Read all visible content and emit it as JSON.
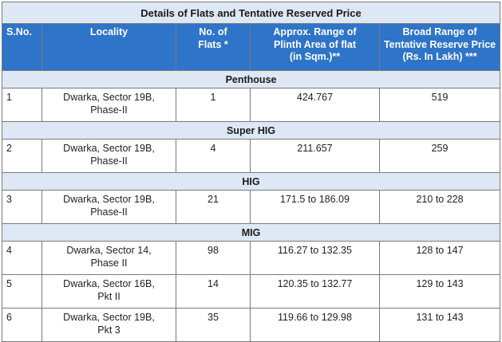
{
  "table": {
    "title": "Details of Flats and Tentative Reserved Price",
    "headers": {
      "sno": "S.No.",
      "locality": "Locality",
      "flats": "No. of\nFlats *",
      "plinth": "Approx. Range of\nPlinth Area of flat\n(in Sqm.)**",
      "price": "Broad Range of\nTentative Reserve Price\n(Rs. In Lakh) ***"
    },
    "groups": [
      {
        "category": "Penthouse",
        "rows": [
          {
            "sno": "1",
            "locality": "Dwarka, Sector 19B,\nPhase-II",
            "flats": "1",
            "plinth": "424.767",
            "price": "519"
          }
        ]
      },
      {
        "category": "Super HIG",
        "rows": [
          {
            "sno": "2",
            "locality": "Dwarka, Sector 19B,\nPhase-II",
            "flats": "4",
            "plinth": "211.657",
            "price": "259"
          }
        ]
      },
      {
        "category": "HIG",
        "rows": [
          {
            "sno": "3",
            "locality": "Dwarka, Sector 19B,\nPhase-II",
            "flats": "21",
            "plinth": "171.5  to 186.09",
            "price": "210 to 228"
          }
        ]
      },
      {
        "category": "MIG",
        "rows": [
          {
            "sno": "4",
            "locality": "Dwarka, Sector 14,\nPhase II",
            "flats": "98",
            "plinth": "116.27 to 132.35",
            "price": "128 to 147"
          },
          {
            "sno": "5",
            "locality": "Dwarka, Sector 16B,\nPkt II",
            "flats": "14",
            "plinth": "120.35 to 132.77",
            "price": "129 to 143"
          },
          {
            "sno": "6",
            "locality": "Dwarka, Sector 19B,\nPkt 3",
            "flats": "35",
            "plinth": "119.66 to 129.98",
            "price": "131 to 143"
          }
        ]
      }
    ]
  }
}
